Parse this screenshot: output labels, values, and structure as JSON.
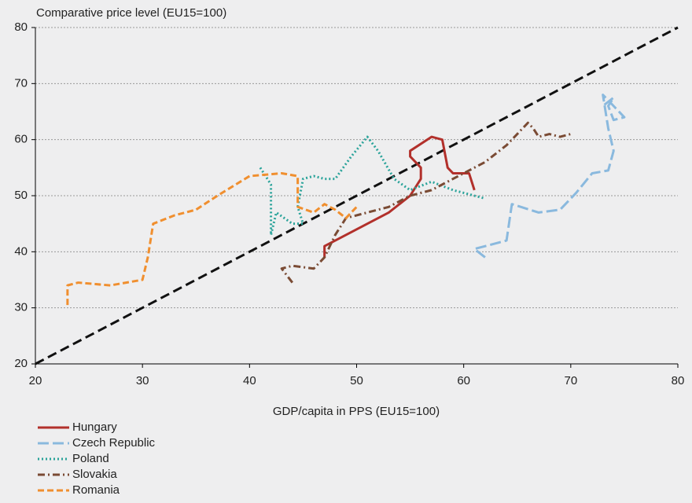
{
  "chart_data": {
    "type": "line",
    "y_label": "Comparative price level (EU15=100)",
    "x_label": "GDP/capita in PPS (EU15=100)",
    "xlim": [
      20,
      80
    ],
    "xticks": [
      20,
      30,
      40,
      50,
      60,
      70,
      80
    ],
    "ylim": [
      20,
      80
    ],
    "yticks": [
      20,
      30,
      40,
      50,
      60,
      70,
      80
    ],
    "grid": true,
    "legend": "bottom-left",
    "series": [
      {
        "name": "Hungary",
        "color": "#b2302b",
        "style": "solid",
        "x": [
          47,
          47,
          50,
          53,
          55,
          56,
          56,
          55,
          55,
          57,
          58,
          58.5,
          59,
          60.5,
          61
        ],
        "values": [
          39,
          41,
          44,
          47,
          50,
          53,
          55,
          57,
          58,
          60.5,
          60,
          55,
          54,
          54,
          51
        ]
      },
      {
        "name": "Czech Republic",
        "color": "#8ab9de",
        "style": "longdash",
        "x": [
          62,
          61,
          64,
          64.5,
          67,
          69,
          70.5,
          72,
          73.5,
          74,
          73.5,
          73,
          74,
          75,
          74,
          73.5,
          74,
          73
        ],
        "values": [
          39,
          40.5,
          42,
          48.5,
          47,
          47.5,
          50.5,
          54,
          54.5,
          58,
          62,
          68,
          66,
          64,
          63.5,
          66,
          67.5,
          66
        ]
      },
      {
        "name": "Poland",
        "color": "#2aa39a",
        "style": "dotted",
        "x": [
          41,
          42,
          42,
          42.5,
          44,
          45,
          44.5,
          45,
          46,
          47,
          48,
          49.5,
          51,
          52,
          53.5,
          55,
          57,
          59,
          62
        ],
        "values": [
          55,
          52,
          43,
          47,
          45,
          45,
          48,
          53,
          53.5,
          53,
          53,
          57,
          60.5,
          58,
          53,
          51,
          52.5,
          51,
          49.5
        ]
      },
      {
        "name": "Slovakia",
        "color": "#7a4b34",
        "style": "dashdot",
        "x": [
          44,
          43,
          44,
          46,
          47,
          48,
          49,
          51,
          53,
          55,
          57,
          59,
          62,
          64,
          65,
          66,
          66.5,
          67,
          68,
          69,
          70
        ],
        "values": [
          34.5,
          37,
          37.5,
          37,
          39,
          43,
          46,
          47,
          48,
          50,
          51,
          53,
          56,
          59,
          61,
          63,
          62,
          60.5,
          61,
          60.5,
          61
        ]
      },
      {
        "name": "Romania",
        "color": "#f08f2f",
        "style": "dashed",
        "x": [
          23,
          23,
          24,
          27,
          30,
          30.5,
          31,
          33,
          35,
          37,
          40,
          43,
          44.5,
          44.5,
          46,
          47,
          48,
          49,
          50
        ],
        "values": [
          30.5,
          34,
          34.5,
          34,
          35,
          39,
          45,
          46.5,
          47.5,
          50,
          53.5,
          54,
          53.5,
          48,
          47,
          48.5,
          47.5,
          46,
          48
        ]
      }
    ]
  }
}
